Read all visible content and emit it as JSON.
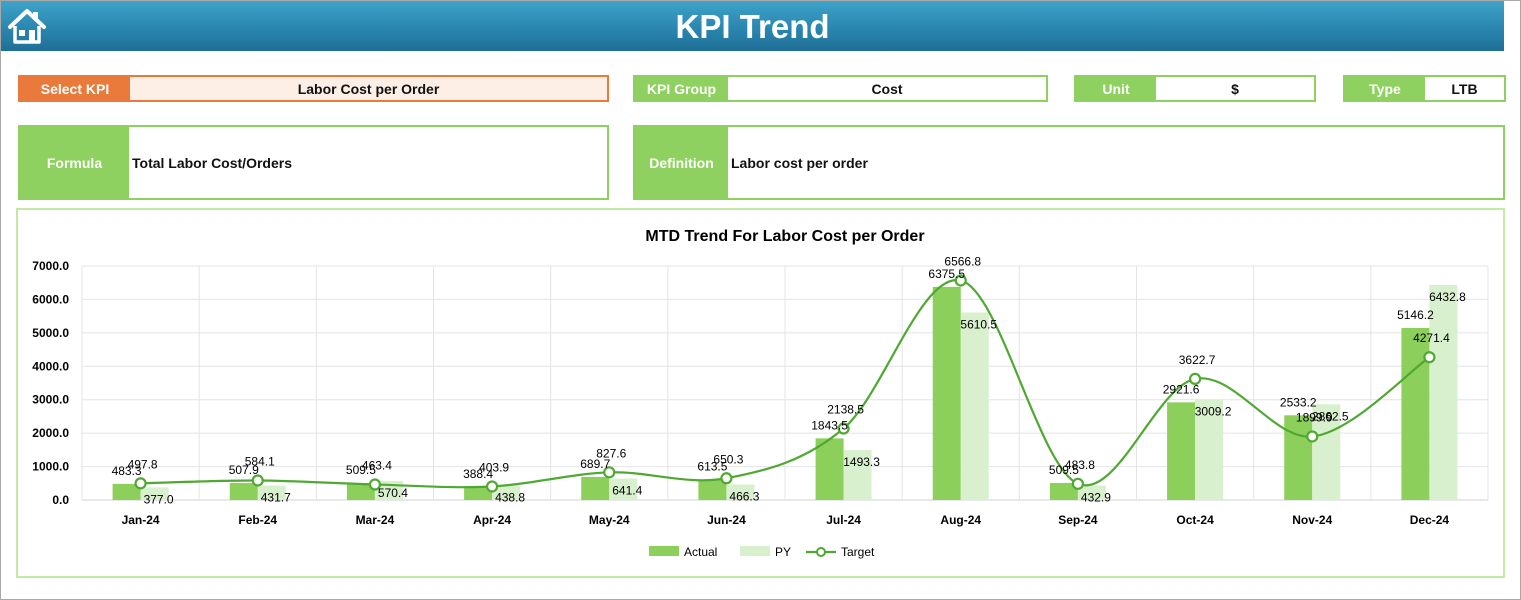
{
  "header": {
    "title": "KPI Trend"
  },
  "fields": {
    "select_kpi": {
      "label": "Select KPI",
      "value": "Labor Cost per Order"
    },
    "kpi_group": {
      "label": "KPI Group",
      "value": "Cost"
    },
    "unit": {
      "label": "Unit",
      "value": "$"
    },
    "type": {
      "label": "Type",
      "value": "LTB"
    },
    "formula": {
      "label": "Formula",
      "value": "Total Labor Cost/Orders"
    },
    "definition": {
      "label": "Definition",
      "value": "Labor cost per order"
    }
  },
  "colors": {
    "actual": "#8ccf5a",
    "py": "#d8f0cd",
    "target": "#4fa832",
    "accent": "#ea7a3c",
    "header": "#2a86b0"
  },
  "icons": {
    "home": "home-icon"
  },
  "chart_data": {
    "type": "bar",
    "title": "MTD Trend For Labor Cost per Order",
    "categories": [
      "Jan-24",
      "Feb-24",
      "Mar-24",
      "Apr-24",
      "May-24",
      "Jun-24",
      "Jul-24",
      "Aug-24",
      "Sep-24",
      "Oct-24",
      "Nov-24",
      "Dec-24"
    ],
    "series": [
      {
        "name": "Actual",
        "kind": "bar",
        "values": [
          483.3,
          507.9,
          509.5,
          388.4,
          689.7,
          613.5,
          1843.5,
          6375.5,
          509.5,
          2921.6,
          2533.2,
          5146.2
        ]
      },
      {
        "name": "PY",
        "kind": "bar",
        "values": [
          377.0,
          431.7,
          570.4,
          438.8,
          641.4,
          466.3,
          1493.3,
          5610.5,
          432.9,
          3009.2,
          2862.5,
          6432.8
        ]
      },
      {
        "name": "Target",
        "kind": "line",
        "values": [
          497.8,
          584.1,
          463.4,
          403.9,
          827.6,
          650.3,
          2138.5,
          6566.8,
          483.8,
          3622.7,
          1899.9,
          4271.4
        ]
      }
    ],
    "yticks": [
      "0.0",
      "1000.0",
      "2000.0",
      "3000.0",
      "4000.0",
      "5000.0",
      "6000.0",
      "7000.0"
    ],
    "ylim": [
      0,
      7000
    ],
    "grid": true,
    "legend_position": "bottom"
  }
}
